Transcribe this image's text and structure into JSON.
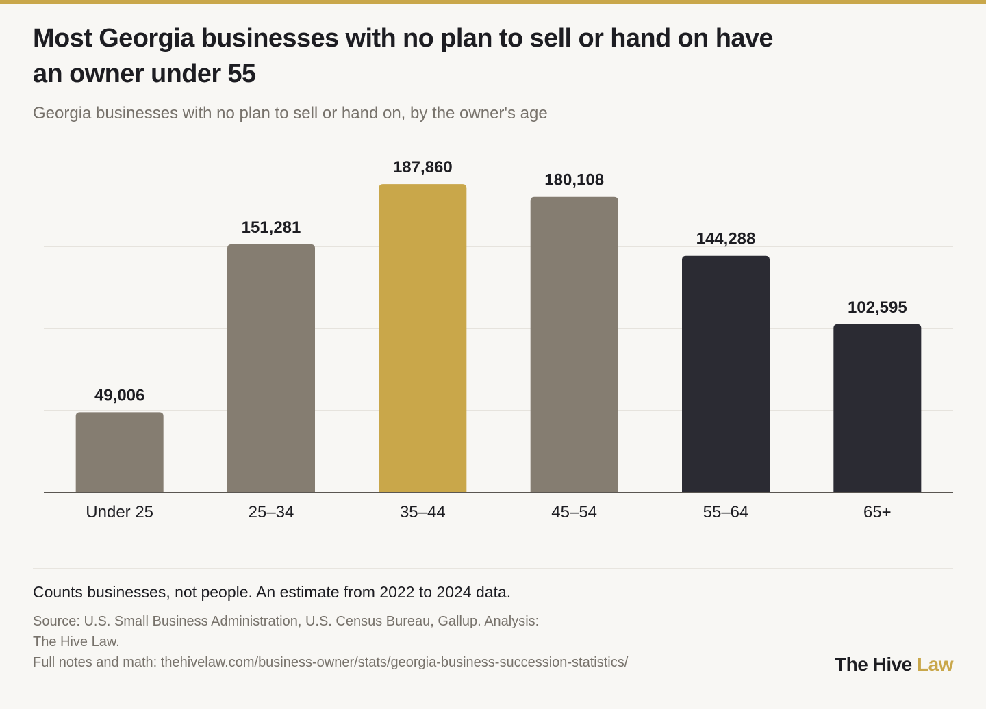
{
  "header": {
    "title": "Most Georgia businesses with no plan to sell or hand on have an owner under 55",
    "subtitle": "Georgia businesses with no plan to sell or hand on, by the owner's age"
  },
  "footer": {
    "note": "Counts businesses, not people. An estimate from 2022 to 2024 data.",
    "source_lines": [
      "Source: U.S. Small Business Administration, U.S. Census Bureau, Gallup. Analysis:",
      "The Hive Law.",
      "Full notes and math: thehivelaw.com/business-owner/stats/georgia-business-succession-statistics/"
    ]
  },
  "logo": {
    "main": "The Hive ",
    "accent": "Law"
  },
  "colors": {
    "accent": "#c9a74a",
    "gray": "#857d71",
    "dark": "#2b2b33",
    "text": "#1d1d22",
    "muted": "#77726b",
    "grid": "#e6e3dd",
    "axis": "#5a5651"
  },
  "chart_data": {
    "type": "bar",
    "categories": [
      "Under 25",
      "25–34",
      "35–44",
      "45–54",
      "55–64",
      "65+"
    ],
    "values": [
      49006,
      151281,
      187860,
      180108,
      144288,
      102595
    ],
    "data_labels": [
      "49,006",
      "151,281",
      "187,860",
      "180,108",
      "144,288",
      "102,595"
    ],
    "bar_colors": [
      "#857d71",
      "#857d71",
      "#c9a74a",
      "#857d71",
      "#2b2b33",
      "#2b2b33"
    ],
    "ylim": [
      0,
      200000
    ],
    "gridlines": [
      50000,
      100000,
      150000
    ],
    "grid": true,
    "legend": "none"
  }
}
